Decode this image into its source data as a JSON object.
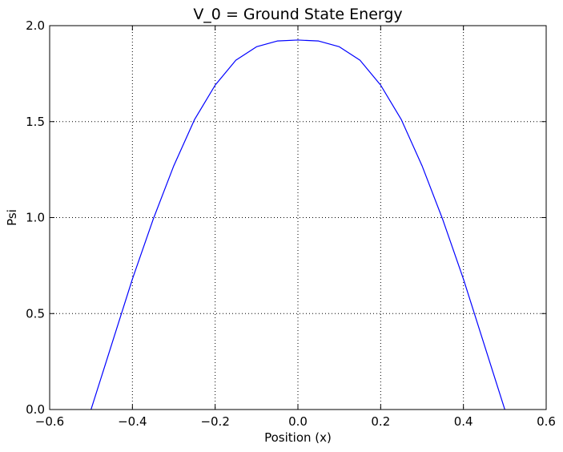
{
  "chart_data": {
    "type": "line",
    "title": "V_0 = Ground State Energy",
    "xlabel": "Position (x)",
    "ylabel": "Psi",
    "xlim": [
      -0.6,
      0.6
    ],
    "ylim": [
      0.0,
      2.0
    ],
    "xticks": [
      -0.6,
      -0.4,
      -0.2,
      0.0,
      0.2,
      0.4,
      0.6
    ],
    "xtick_labels": [
      "−0.6",
      "−0.4",
      "−0.2",
      "0.0",
      "0.2",
      "0.4",
      "0.6"
    ],
    "yticks": [
      0.0,
      0.5,
      1.0,
      1.5,
      2.0
    ],
    "ytick_labels": [
      "0.0",
      "0.5",
      "1.0",
      "1.5",
      "2.0"
    ],
    "grid": true,
    "series": [
      {
        "color": "#0000ff",
        "x": [
          -0.5,
          -0.45,
          -0.4,
          -0.35,
          -0.3,
          -0.25,
          -0.2,
          -0.15,
          -0.1,
          -0.05,
          0.0,
          0.05,
          0.1,
          0.15,
          0.2,
          0.25,
          0.3,
          0.35,
          0.4,
          0.45,
          0.5
        ],
        "y": [
          0.0,
          0.34,
          0.68,
          0.99,
          1.27,
          1.51,
          1.69,
          1.82,
          1.89,
          1.92,
          1.925,
          1.92,
          1.89,
          1.82,
          1.69,
          1.51,
          1.27,
          0.99,
          0.68,
          0.34,
          0.0
        ]
      }
    ]
  }
}
